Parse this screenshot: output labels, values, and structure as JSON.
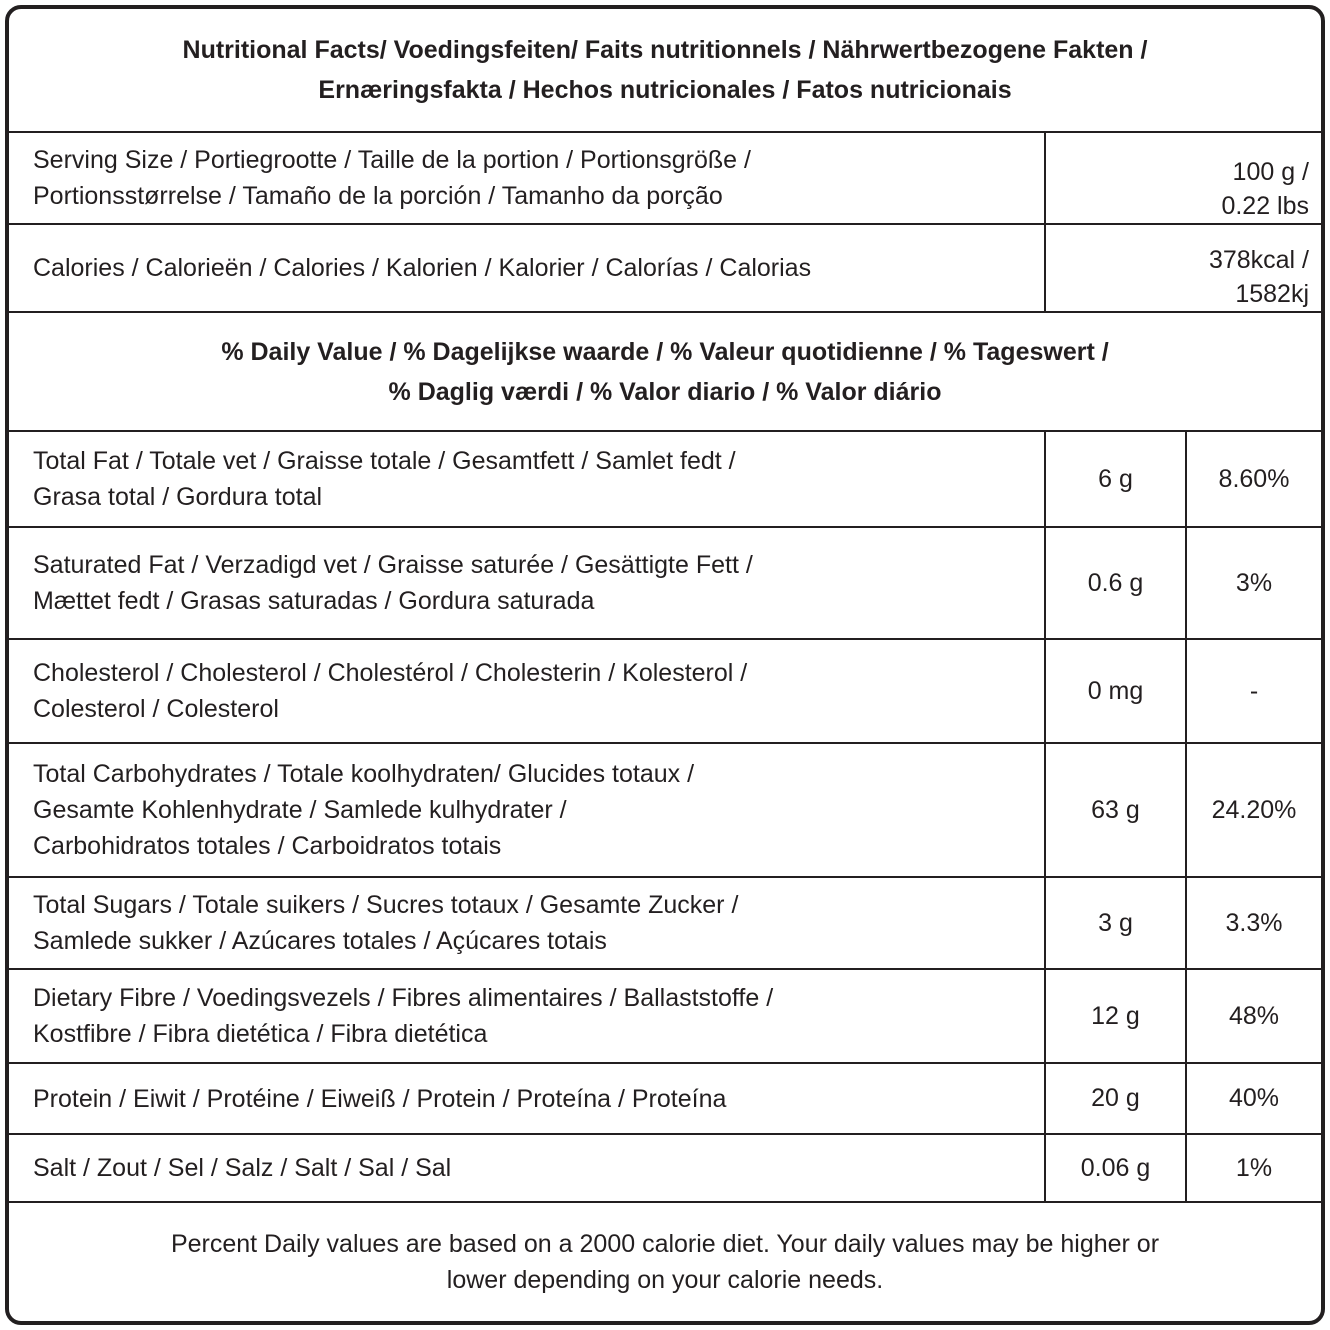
{
  "title": [
    "Nutritional Facts/ Voedingsfeiten/ Faits nutritionnels / Nährwertbezogene Fakten /",
    "Ernæringsfakta / Hechos nutricionales / Fatos nutricionais"
  ],
  "serving": {
    "label": [
      "Serving Size / Portiegrootte / Taille de la portion / Portionsgröße /",
      "Portionsstørrelse / Tamaño de la porción / Tamanho da porção"
    ],
    "value": [
      "100 g /",
      "0.22 lbs"
    ]
  },
  "calories": {
    "label": [
      "Calories / Calorieën / Calories / Kalorien / Kalorier / Calorías / Calorias"
    ],
    "value": [
      "378kcal /",
      "1582kj"
    ]
  },
  "daily_value_header": [
    "% Daily Value / % Dagelijkse waarde / % Valeur quotidienne / % Tageswert /",
    "% Daglig værdi / % Valor diario / % Valor diário"
  ],
  "nutrients": [
    {
      "label": [
        "Total Fat / Totale vet / Graisse totale / Gesamtfett / Samlet fedt /",
        "Grasa total / Gordura total"
      ],
      "amount": "6 g",
      "dv": "8.60%"
    },
    {
      "label": [
        "Saturated Fat / Verzadigd vet / Graisse saturée / Gesättigte Fett /",
        "Mættet fedt / Grasas saturadas / Gordura saturada"
      ],
      "amount": "0.6 g",
      "dv": "3%"
    },
    {
      "label": [
        "Cholesterol / Cholesterol  / Cholestérol / Cholesterin /  Kolesterol /",
        "Colesterol / Colesterol"
      ],
      "amount": "0 mg",
      "dv": "-"
    },
    {
      "label": [
        "Total Carbohydrates / Totale koolhydraten/ Glucides totaux /",
        "Gesamte Kohlenhydrate / Samlede kulhydrater /",
        "Carbohidratos totales / Carboidratos totais"
      ],
      "amount": "63 g",
      "dv": "24.20%"
    },
    {
      "label": [
        "Total Sugars / Totale suikers / Sucres totaux / Gesamte Zucker /",
        "Samlede sukker / Azúcares totales / Açúcares totais"
      ],
      "amount": "3 g",
      "dv": "3.3%"
    },
    {
      "label": [
        "Dietary Fibre / Voedingsvezels / Fibres alimentaires / Ballaststoffe /",
        "Kostfibre / Fibra dietética / Fibra dietética"
      ],
      "amount": "12 g",
      "dv": "48%"
    },
    {
      "label": [
        "Protein / Eiwit / Protéine / Eiweiß / Protein / Proteína / Proteína"
      ],
      "amount": "20 g",
      "dv": "40%"
    },
    {
      "label": [
        "Salt / Zout / Sel / Salz / Salt / Sal / Sal"
      ],
      "amount": "0.06 g",
      "dv": "1%"
    }
  ],
  "footer": [
    "Percent Daily values are based on a 2000 calorie diet. Your daily values may be higher or",
    "lower depending on your calorie needs."
  ]
}
